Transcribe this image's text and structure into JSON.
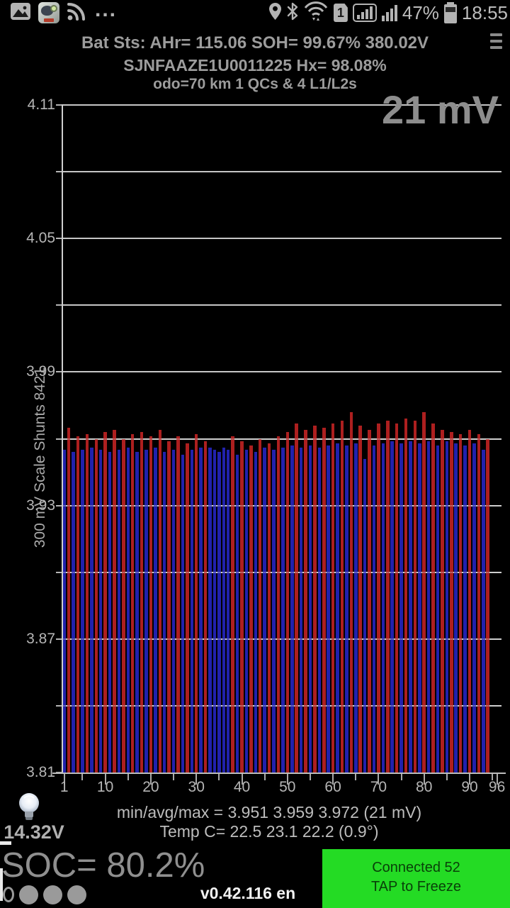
{
  "status_bar": {
    "dots": "...",
    "sim_badge": "1",
    "battery_pct": "47%",
    "time": "18:55"
  },
  "header": {
    "line1": "Bat Sts:  AHr= 115.06  SOH= 99.67%   380.02V",
    "line2": "SJNFAAZE1U0011225   Hx= 98.08%",
    "line3": "odo=70 km 1 QCs & 4 L1/L2s"
  },
  "chart_data": {
    "type": "bar",
    "title_overlay": "21 mV",
    "ylabel": "300 mV Scale   Shunts 8421",
    "ylim": [
      3.81,
      4.11
    ],
    "grid_step": 0.03,
    "grid": true,
    "ytick_labels": [
      "4.11",
      "4.05",
      "3.99",
      "3.93",
      "3.87",
      "3.81"
    ],
    "xtick_labels": [
      1,
      10,
      20,
      30,
      40,
      50,
      60,
      70,
      80,
      90,
      96
    ],
    "xtick_minor": [
      5,
      15,
      25,
      35,
      45,
      55,
      65,
      75,
      85,
      95
    ],
    "x_count": 96,
    "bar_color_map": {
      "b": "#2121ad",
      "r": "#ad1f1f"
    },
    "bar_colors": "brbrbrbrbrbrbrbrbrbrbrbrbrbrbrbrbbbbbrbrbrbrbrbrbrbrbrbrbrbrbrbrbrbrbrbrbrbrbrbrbrbrbrbrbrbrbr",
    "values": [
      3.955,
      3.965,
      3.954,
      3.961,
      3.955,
      3.962,
      3.956,
      3.96,
      3.955,
      3.963,
      3.954,
      3.964,
      3.955,
      3.96,
      3.956,
      3.962,
      3.954,
      3.963,
      3.955,
      3.961,
      3.956,
      3.964,
      3.954,
      3.959,
      3.955,
      3.961,
      3.953,
      3.958,
      3.955,
      3.962,
      3.956,
      3.959,
      3.956,
      3.955,
      3.954,
      3.956,
      3.955,
      3.961,
      3.953,
      3.959,
      3.955,
      3.957,
      3.954,
      3.96,
      3.956,
      3.958,
      3.955,
      3.961,
      3.956,
      3.963,
      3.957,
      3.967,
      3.956,
      3.964,
      3.957,
      3.966,
      3.956,
      3.965,
      3.957,
      3.967,
      3.958,
      3.968,
      3.957,
      3.972,
      3.958,
      3.966,
      3.951,
      3.964,
      3.957,
      3.967,
      3.958,
      3.968,
      3.959,
      3.967,
      3.958,
      3.969,
      3.959,
      3.968,
      3.958,
      3.972,
      3.959,
      3.967,
      3.957,
      3.964,
      3.959,
      3.963,
      3.958,
      3.962,
      3.957,
      3.964,
      3.958,
      3.962,
      3.955,
      3.96,
      3.956,
      3.963
    ],
    "min_avg_max": [
      3.951,
      3.959,
      3.972
    ],
    "spread_mv": "21 mV"
  },
  "footer": {
    "stats": "min/avg/max = 3.951 3.959 3.972  (21 mV)",
    "temp": "Temp C= 22.5  23.1  22.2  (0.9°)",
    "aux_voltage": "14.32V",
    "soc": "SOC= 80.2%",
    "version": "v0.42.116 en",
    "connect_line1": "Connected 52",
    "connect_line2": "TAP to Freeze"
  },
  "colors": {
    "bar_blue": "#2121ad",
    "bar_red": "#ad1f1f",
    "connect_green": "#24db24",
    "text_gray": "#9c9c9c"
  }
}
